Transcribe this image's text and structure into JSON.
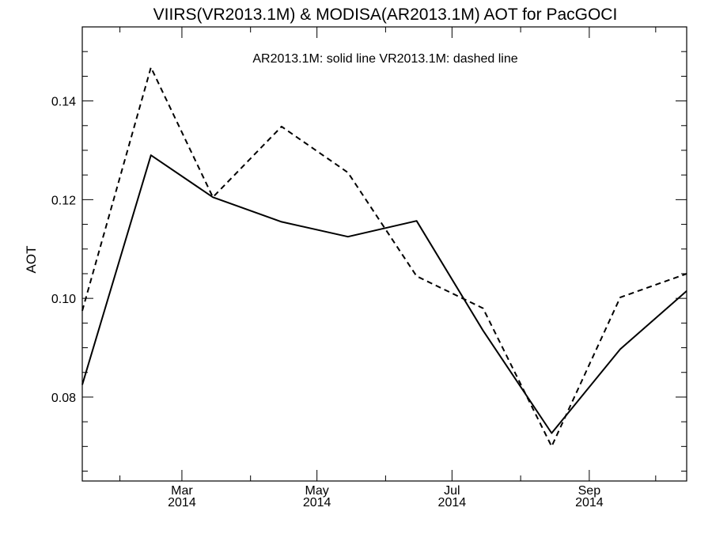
{
  "chart_data": {
    "type": "line",
    "title": "VIIRS(VR2013.1M) & MODISA(AR2013.1M)  AOT for PacGOCI",
    "annotation": "AR2013.1M: solid line   VR2013.1M: dashed line",
    "xlabel": "",
    "ylabel": "AOT",
    "x": [
      "2014-01",
      "2014-02",
      "2014-03",
      "2014-04",
      "2014-05",
      "2014-06",
      "2014-07",
      "2014-08",
      "2014-09",
      "2014-10"
    ],
    "xlim": [
      "2014-01-15",
      "2014-10-15"
    ],
    "x_ticks": [
      {
        "month": "Mar",
        "year": "2014",
        "date": "2014-03-01"
      },
      {
        "month": "May",
        "year": "2014",
        "date": "2014-05-01"
      },
      {
        "month": "Jul",
        "year": "2014",
        "date": "2014-07-01"
      },
      {
        "month": "Sep",
        "year": "2014",
        "date": "2014-09-01"
      }
    ],
    "x_minor_ticks": [
      "2014-02-01",
      "2014-04-01",
      "2014-06-01",
      "2014-08-01",
      "2014-10-01"
    ],
    "ylim": [
      0.063,
      0.155
    ],
    "y_ticks": [
      {
        "value": 0.08,
        "label": "0.08"
      },
      {
        "value": 0.1,
        "label": "0.10"
      },
      {
        "value": 0.12,
        "label": "0.12"
      },
      {
        "value": 0.14,
        "label": "0.14"
      }
    ],
    "y_minor_step": 0.005,
    "grid": false,
    "series": [
      {
        "name": "AR2013.1M",
        "style": "solid",
        "color": "#000000",
        "values": [
          0.0825,
          0.129,
          0.1205,
          0.1155,
          0.1125,
          0.1157,
          0.0935,
          0.0727,
          0.0897,
          0.1015
        ]
      },
      {
        "name": "VR2013.1M",
        "style": "dashed",
        "color": "#000000",
        "values": [
          0.0975,
          0.1468,
          0.1205,
          0.1348,
          0.1255,
          0.1045,
          0.098,
          0.07,
          0.1002,
          0.105
        ]
      }
    ]
  }
}
